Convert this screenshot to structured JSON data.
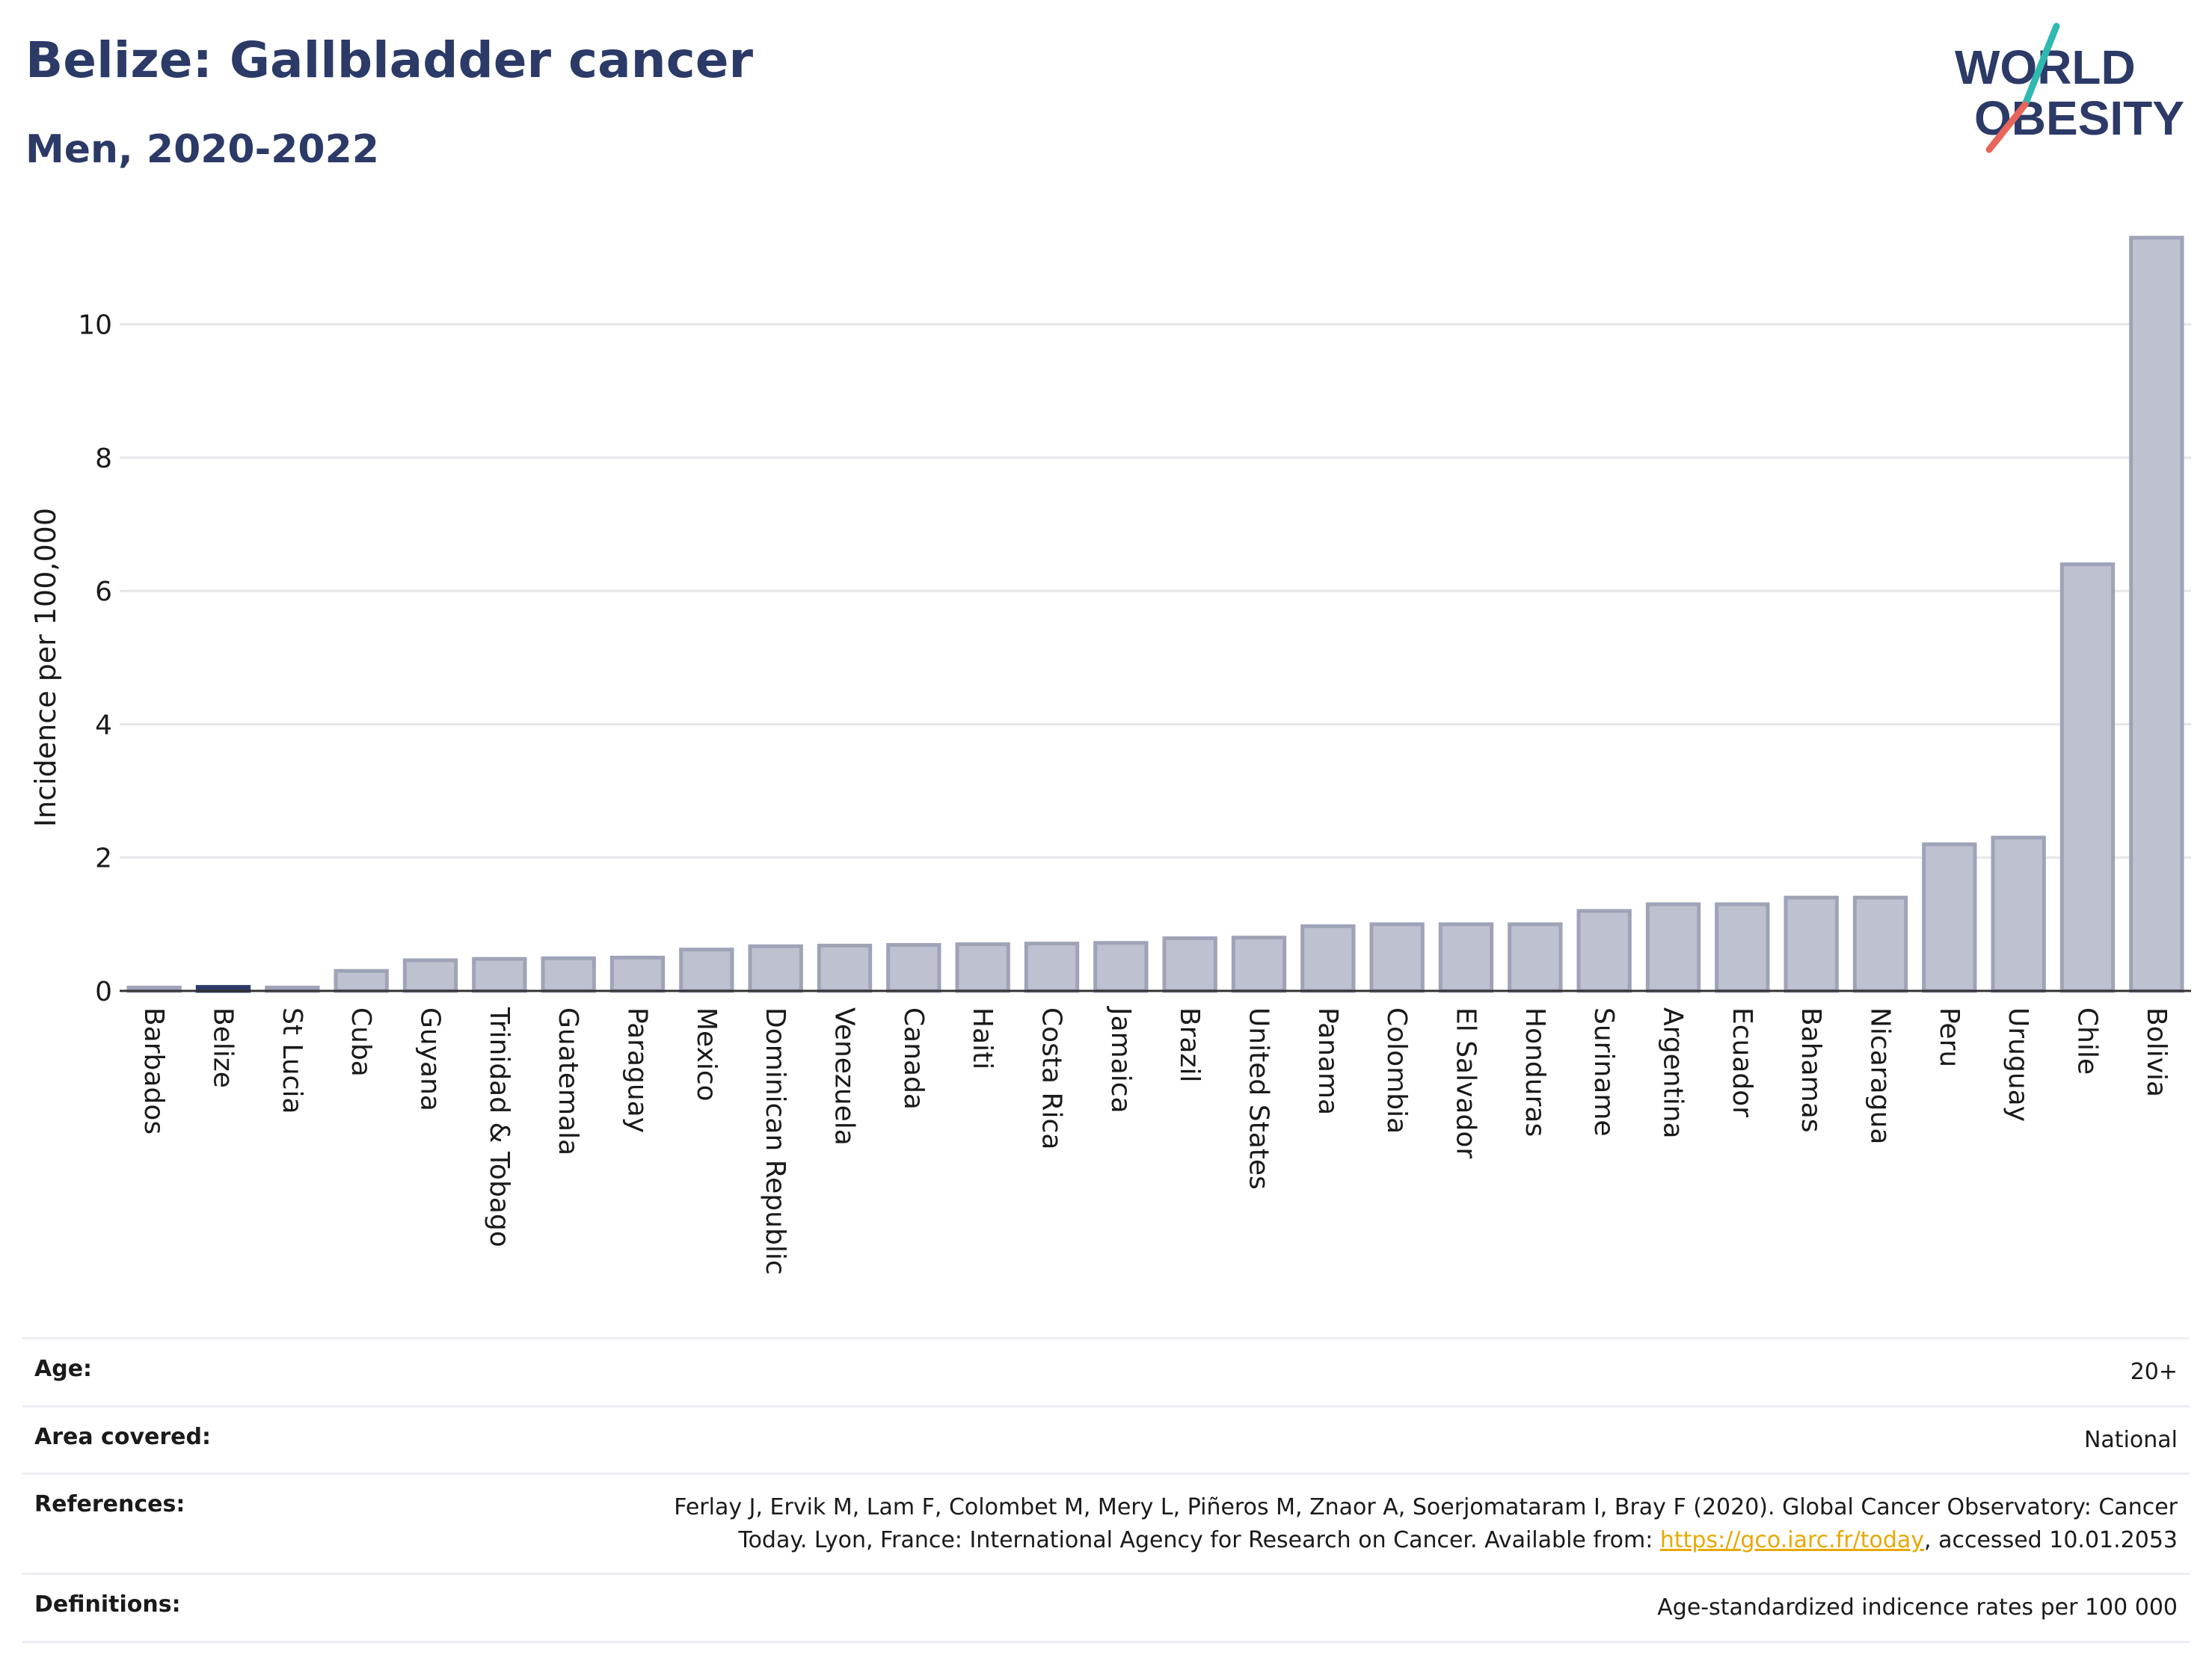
{
  "header": {
    "title": "Belize: Gallbladder cancer",
    "subtitle": "Men, 2020-2022"
  },
  "logo": {
    "line1": "WORLD",
    "line2": "OBESITY"
  },
  "chart_data": {
    "type": "bar",
    "title": "Belize: Gallbladder cancer",
    "subtitle": "Men, 2020-2022",
    "xlabel": "",
    "ylabel": "Incidence per 100,000",
    "ylim": [
      0,
      11.5
    ],
    "yticks": [
      0,
      2,
      4,
      6,
      8,
      10
    ],
    "grid": true,
    "highlight": "Belize",
    "colors": {
      "bar": "#bec1d0",
      "bar_stroke": "#9ea3b8",
      "highlight": "#2b3a67",
      "axis": "#333333",
      "grid": "#e6e6ea"
    },
    "categories": [
      "Barbados",
      "Belize",
      "St Lucia",
      "Cuba",
      "Guyana",
      "Trinidad & Tobago",
      "Guatemala",
      "Paraguay",
      "Mexico",
      "Dominican Republic",
      "Venezuela",
      "Canada",
      "Haiti",
      "Costa Rica",
      "Jamaica",
      "Brazil",
      "United States",
      "Panama",
      "Colombia",
      "El Salvador",
      "Honduras",
      "Suriname",
      "Argentina",
      "Ecuador",
      "Bahamas",
      "Nicaragua",
      "Peru",
      "Uruguay",
      "Chile",
      "Bolivia"
    ],
    "values": [
      0.05,
      0.06,
      0.05,
      0.3,
      0.46,
      0.48,
      0.49,
      0.5,
      0.62,
      0.67,
      0.68,
      0.69,
      0.7,
      0.71,
      0.72,
      0.79,
      0.8,
      0.97,
      1.0,
      1.0,
      1.0,
      1.2,
      1.3,
      1.3,
      1.4,
      1.4,
      2.2,
      2.3,
      6.4,
      11.3
    ]
  },
  "info": {
    "age_label": "Age:",
    "age_value": "20+",
    "area_label": "Area covered:",
    "area_value": "National",
    "references_label": "References:",
    "references_text_1": "Ferlay J, Ervik M, Lam F, Colombet M, Mery L, Piñeros M, Znaor A, Soerjomataram I, Bray F (2020). Global Cancer Observatory: Cancer",
    "references_text_2": "Today. Lyon, France: International Agency for Research on Cancer. Available from: ",
    "references_link": "https://gco.iarc.fr/today",
    "references_text_3": ", accessed 10.01.2053",
    "definitions_label": "Definitions:",
    "definitions_value": "Age-standardized indicence rates per 100 000"
  }
}
